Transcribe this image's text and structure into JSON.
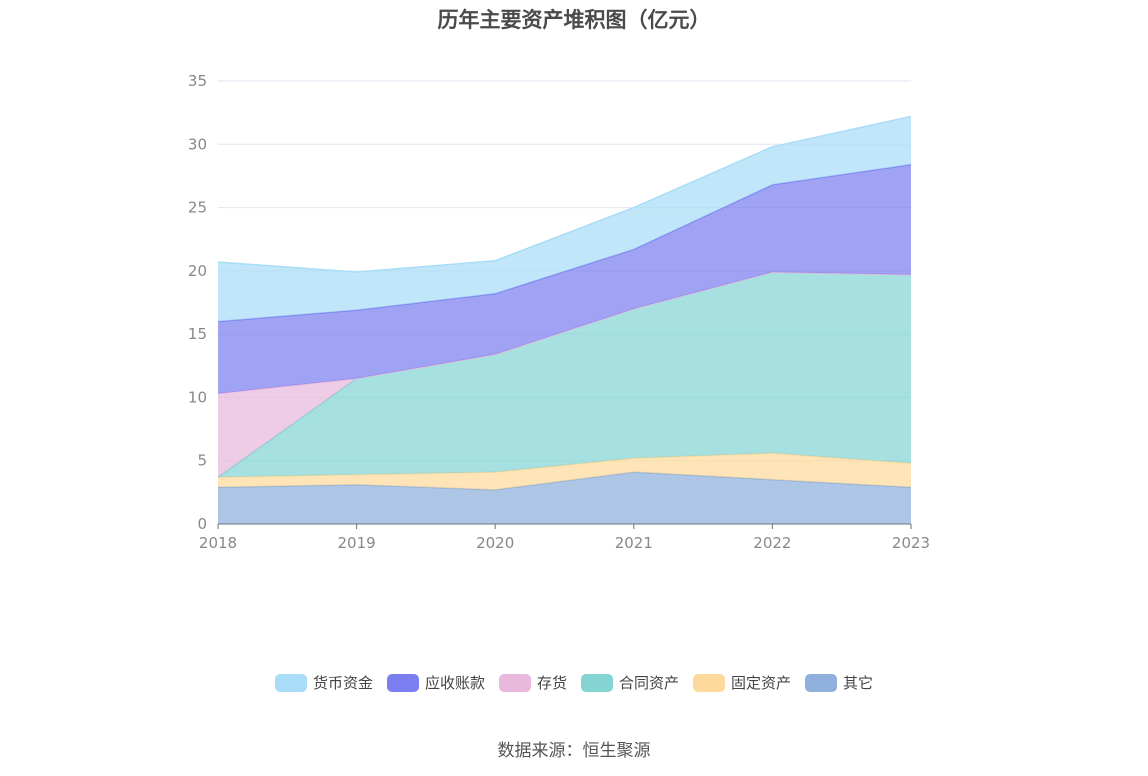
{
  "chart_data": {
    "type": "area",
    "stacked": true,
    "title": "历年主要资产堆积图（亿元）",
    "x": [
      "2018",
      "2019",
      "2020",
      "2021",
      "2022",
      "2023"
    ],
    "ylim": [
      0,
      35
    ],
    "yticks": [
      0,
      5,
      10,
      15,
      20,
      25,
      30,
      35
    ],
    "grid": true,
    "legend_position": "bottom",
    "series": [
      {
        "name": "其它",
        "color": "#8fb0dc",
        "values": [
          2.9,
          3.1,
          2.7,
          4.1,
          3.5,
          2.9
        ]
      },
      {
        "name": "固定资产",
        "color": "#fdd99b",
        "values": [
          0.8,
          0.8,
          1.4,
          1.1,
          2.1,
          1.9
        ]
      },
      {
        "name": "合同资产",
        "color": "#84d4d4",
        "values": [
          0.0,
          7.6,
          9.3,
          11.8,
          14.3,
          14.9
        ]
      },
      {
        "name": "存货",
        "color": "#e8b9dd",
        "values": [
          6.6,
          0.0,
          0.0,
          0.0,
          0.0,
          0.0
        ]
      },
      {
        "name": "应收账款",
        "color": "#7b7ef0",
        "values": [
          5.7,
          5.4,
          4.8,
          4.7,
          6.9,
          8.7
        ]
      },
      {
        "name": "货币资金",
        "color": "#a9dcf7",
        "values": [
          4.7,
          3.0,
          2.6,
          3.3,
          3.0,
          3.8
        ]
      }
    ]
  },
  "legend_order": [
    "货币资金",
    "应收账款",
    "存货",
    "合同资产",
    "固定资产",
    "其它"
  ],
  "source": "数据来源：恒生聚源"
}
